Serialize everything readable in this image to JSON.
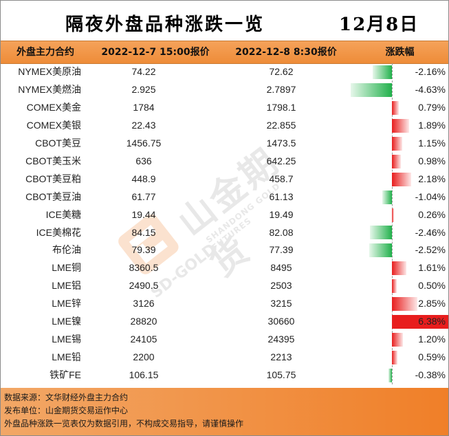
{
  "header": {
    "title": "隔夜外盘品种涨跌一览",
    "date": "12月8日"
  },
  "table": {
    "columns": [
      "外盘主力合约",
      "2022-12-7 15:00报价",
      "2022-12-8 8:30报价",
      "涨跌幅"
    ]
  },
  "chart_data": {
    "type": "table",
    "rows": [
      {
        "name": "NYMEX美原油",
        "price_prev": "74.22",
        "price_now": "72.62",
        "change_label": "-2.16%",
        "change": -2.16
      },
      {
        "name": "NYMEX美燃油",
        "price_prev": "2.925",
        "price_now": "2.7897",
        "change_label": "-4.63%",
        "change": -4.63
      },
      {
        "name": "COMEX美金",
        "price_prev": "1784",
        "price_now": "1798.1",
        "change_label": "0.79%",
        "change": 0.79
      },
      {
        "name": "COMEX美银",
        "price_prev": "22.43",
        "price_now": "22.855",
        "change_label": "1.89%",
        "change": 1.89
      },
      {
        "name": "CBOT美豆",
        "price_prev": "1456.75",
        "price_now": "1473.5",
        "change_label": "1.15%",
        "change": 1.15
      },
      {
        "name": "CBOT美玉米",
        "price_prev": "636",
        "price_now": "642.25",
        "change_label": "0.98%",
        "change": 0.98
      },
      {
        "name": "CBOT美豆粕",
        "price_prev": "448.9",
        "price_now": "458.7",
        "change_label": "2.18%",
        "change": 2.18
      },
      {
        "name": "CBOT美豆油",
        "price_prev": "61.77",
        "price_now": "61.13",
        "change_label": "-1.04%",
        "change": -1.04
      },
      {
        "name": "ICE美糖",
        "price_prev": "19.44",
        "price_now": "19.49",
        "change_label": "0.26%",
        "change": 0.26
      },
      {
        "name": "ICE美棉花",
        "price_prev": "84.15",
        "price_now": "82.08",
        "change_label": "-2.46%",
        "change": -2.46
      },
      {
        "name": "布伦油",
        "price_prev": "79.39",
        "price_now": "77.39",
        "change_label": "-2.52%",
        "change": -2.52
      },
      {
        "name": "LME铜",
        "price_prev": "8360.5",
        "price_now": "8495",
        "change_label": "1.61%",
        "change": 1.61
      },
      {
        "name": "LME铝",
        "price_prev": "2490.5",
        "price_now": "2503",
        "change_label": "0.50%",
        "change": 0.5
      },
      {
        "name": "LME锌",
        "price_prev": "3126",
        "price_now": "3215",
        "change_label": "2.85%",
        "change": 2.85
      },
      {
        "name": "LME镍",
        "price_prev": "28820",
        "price_now": "30660",
        "change_label": "6.38%",
        "change": 6.38
      },
      {
        "name": "LME锡",
        "price_prev": "24105",
        "price_now": "24395",
        "change_label": "1.20%",
        "change": 1.2
      },
      {
        "name": "LME铅",
        "price_prev": "2200",
        "price_now": "2213",
        "change_label": "0.59%",
        "change": 0.59
      },
      {
        "name": "铁矿FE",
        "price_prev": "106.15",
        "price_now": "105.75",
        "change_label": "-0.38%",
        "change": -0.38
      }
    ],
    "colors": {
      "up": "#e81d1d",
      "down": "#22b14c"
    }
  },
  "watermark": {
    "cn": "山金期货",
    "en": "SHANDONG GOLD FUTURES",
    "logo_text": "SD-GOLD"
  },
  "footer": {
    "line1": "数据来源：文华财经外盘主力合约",
    "line2": "发布单位：山金期货交易运作中心",
    "line3": "外盘品种涨跌一览表仅为数据引用，不构成交易指导，请谨慎操作"
  }
}
